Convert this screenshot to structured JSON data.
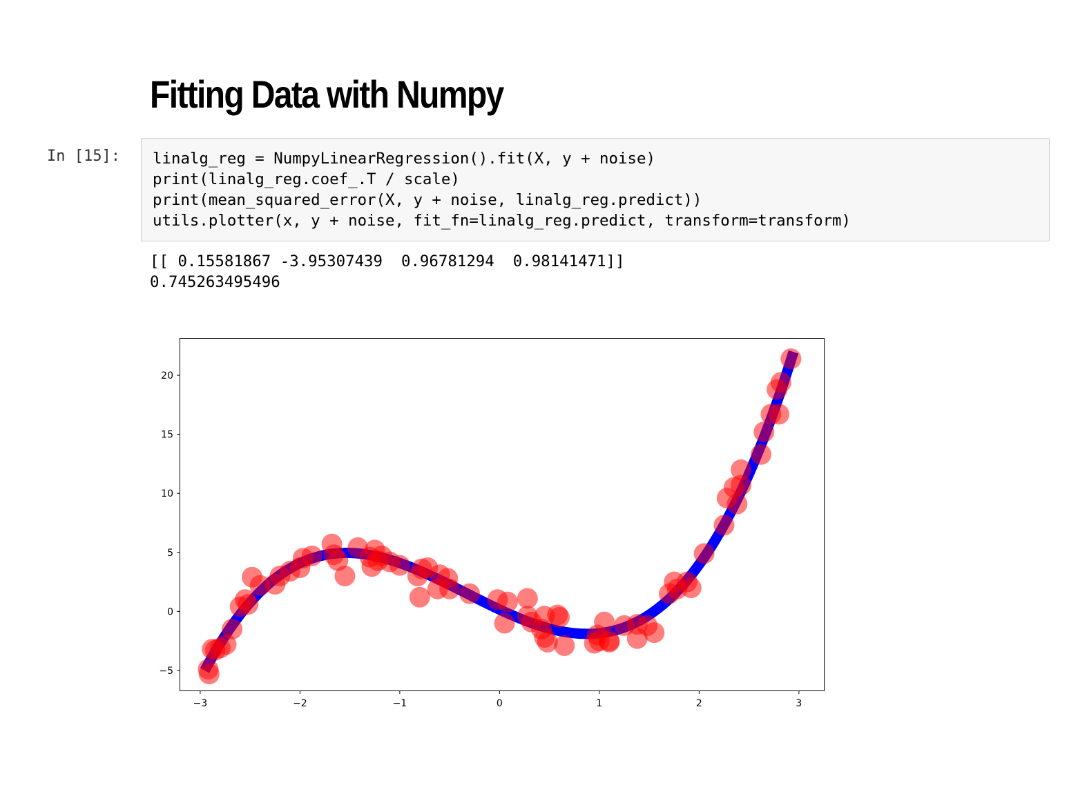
{
  "page_title": "Fitting Data with Numpy",
  "cell": {
    "prompt": "In [15]:",
    "code_lines": [
      "linalg_reg = NumpyLinearRegression().fit(X, y + noise)",
      "print(linalg_reg.coef_.T / scale)",
      "print(mean_squared_error(X, y + noise, linalg_reg.predict))",
      "utils.plotter(x, y + noise, fit_fn=linalg_reg.predict, transform=transform)"
    ],
    "output_lines": [
      "[[ 0.15581867 -3.95307439  0.96781294  0.98141471]]",
      "0.745263495496"
    ]
  },
  "chart_data": {
    "type": "scatter",
    "xlim": [
      -3.2,
      3.25
    ],
    "ylim": [
      -6.7,
      23.1
    ],
    "x_ticks": [
      -3,
      -2,
      -1,
      0,
      1,
      2,
      3
    ],
    "y_ticks": [
      -5,
      0,
      5,
      10,
      15,
      20
    ],
    "x_tick_labels": [
      "−3",
      "−2",
      "−1",
      "0",
      "1",
      "2",
      "3"
    ],
    "y_tick_labels": [
      "−5",
      "0",
      "5",
      "10",
      "15",
      "20"
    ],
    "grid": false,
    "fit_color": "#0000ff",
    "points_color": "#ff0000",
    "fit_coefficients": [
      0.156,
      -3.953,
      0.968,
      0.981
    ],
    "fit_x_range": [
      -2.93,
      2.93
    ],
    "points": [
      [
        -2.92,
        -4.9
      ],
      [
        -2.91,
        -5.3
      ],
      [
        -2.88,
        -3.2
      ],
      [
        -2.85,
        -3.3
      ],
      [
        -2.8,
        -3.1
      ],
      [
        -2.74,
        -2.8
      ],
      [
        -2.68,
        -1.5
      ],
      [
        -2.6,
        0.4
      ],
      [
        -2.55,
        1.0
      ],
      [
        -2.52,
        0.6
      ],
      [
        -2.48,
        2.9
      ],
      [
        -2.4,
        2.2
      ],
      [
        -2.25,
        2.3
      ],
      [
        -2.2,
        3.0
      ],
      [
        -2.1,
        3.4
      ],
      [
        -2.0,
        3.7
      ],
      [
        -1.97,
        4.5
      ],
      [
        -1.88,
        4.7
      ],
      [
        -1.68,
        5.7
      ],
      [
        -1.66,
        4.8
      ],
      [
        -1.62,
        4.3
      ],
      [
        -1.55,
        3.0
      ],
      [
        -1.42,
        5.4
      ],
      [
        -1.3,
        4.6
      ],
      [
        -1.28,
        3.8
      ],
      [
        -1.25,
        5.2
      ],
      [
        -1.22,
        4.3
      ],
      [
        -1.18,
        4.7
      ],
      [
        -1.1,
        4.2
      ],
      [
        -1.0,
        3.9
      ],
      [
        -0.82,
        3.0
      ],
      [
        -0.8,
        1.2
      ],
      [
        -0.78,
        3.6
      ],
      [
        -0.72,
        3.7
      ],
      [
        -0.62,
        1.9
      ],
      [
        -0.6,
        3.1
      ],
      [
        -0.52,
        2.8
      ],
      [
        -0.5,
        1.9
      ],
      [
        -0.3,
        1.5
      ],
      [
        -0.02,
        1.0
      ],
      [
        0.05,
        -1.0
      ],
      [
        0.08,
        0.8
      ],
      [
        0.28,
        1.1
      ],
      [
        0.28,
        -0.4
      ],
      [
        0.32,
        -0.9
      ],
      [
        0.42,
        -1.5
      ],
      [
        0.45,
        -2.2
      ],
      [
        0.48,
        -2.6
      ],
      [
        0.45,
        -0.4
      ],
      [
        0.58,
        -0.3
      ],
      [
        0.6,
        -0.5
      ],
      [
        0.65,
        -2.9
      ],
      [
        0.95,
        -2.7
      ],
      [
        0.98,
        -2.0
      ],
      [
        1.0,
        -2.5
      ],
      [
        1.05,
        -0.9
      ],
      [
        1.1,
        -2.6
      ],
      [
        1.1,
        -2.5
      ],
      [
        1.25,
        -1.2
      ],
      [
        1.38,
        -1.1
      ],
      [
        1.38,
        -2.3
      ],
      [
        1.48,
        -1.2
      ],
      [
        1.55,
        -1.8
      ],
      [
        1.7,
        1.5
      ],
      [
        1.75,
        2.5
      ],
      [
        1.78,
        1.9
      ],
      [
        1.88,
        2.5
      ],
      [
        1.92,
        2.0
      ],
      [
        2.05,
        4.9
      ],
      [
        2.25,
        7.3
      ],
      [
        2.28,
        9.6
      ],
      [
        2.35,
        10.5
      ],
      [
        2.38,
        9.1
      ],
      [
        2.42,
        10.7
      ],
      [
        2.42,
        12.0
      ],
      [
        2.62,
        13.3
      ],
      [
        2.65,
        15.2
      ],
      [
        2.72,
        16.7
      ],
      [
        2.8,
        16.7
      ],
      [
        2.78,
        18.8
      ],
      [
        2.82,
        19.4
      ],
      [
        2.92,
        21.4
      ]
    ]
  }
}
